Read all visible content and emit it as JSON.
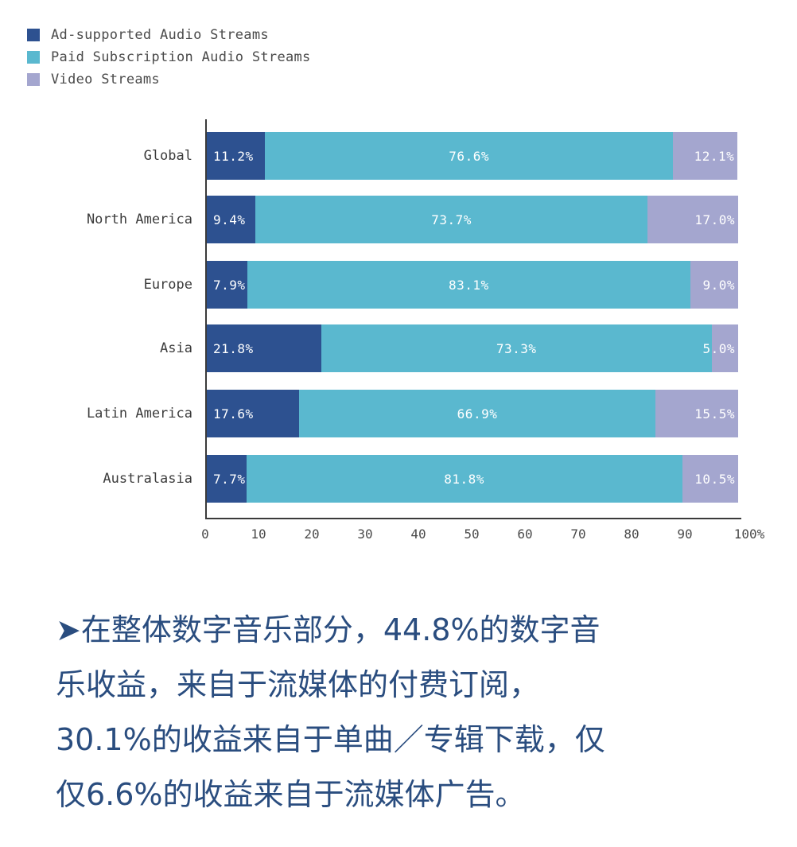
{
  "legend": [
    {
      "label": "Ad-supported Audio Streams",
      "color": "#2d5190"
    },
    {
      "label": "Paid Subscription Audio Streams",
      "color": "#5ab8cf"
    },
    {
      "label": "Video Streams",
      "color": "#a4a6cf"
    }
  ],
  "chart_data": {
    "type": "bar",
    "orientation": "horizontal",
    "stacked": true,
    "title": "",
    "xlabel": "",
    "ylabel": "",
    "xlim": [
      0,
      100
    ],
    "x_ticks": [
      "0",
      "10",
      "20",
      "30",
      "40",
      "50",
      "60",
      "70",
      "80",
      "90",
      "100%"
    ],
    "grid": false,
    "legend_position": "top-left",
    "categories": [
      "Global",
      "North America",
      "Europe",
      "Asia",
      "Latin America",
      "Australasia"
    ],
    "series": [
      {
        "name": "Ad-supported Audio Streams",
        "color": "#2d5190",
        "values": [
          11.2,
          9.4,
          7.9,
          21.8,
          17.6,
          7.7
        ],
        "labels": [
          "11.2%",
          "9.4%",
          "7.9%",
          "21.8%",
          "17.6%",
          "7.7%"
        ]
      },
      {
        "name": "Paid Subscription Audio Streams",
        "color": "#5ab8cf",
        "values": [
          76.6,
          73.7,
          83.1,
          73.3,
          66.9,
          81.8
        ],
        "labels": [
          "76.6%",
          "73.7%",
          "83.1%",
          "73.3%",
          "66.9%",
          "81.8%"
        ]
      },
      {
        "name": "Video Streams",
        "color": "#a4a6cf",
        "values": [
          12.1,
          17.0,
          9.0,
          5.0,
          15.5,
          10.5
        ],
        "labels": [
          "12.1%",
          "17.0%",
          "9.0%",
          "5.0%",
          "15.5%",
          "10.5%"
        ]
      }
    ]
  },
  "note": {
    "bullet": "➤",
    "lines": [
      "在整体数字音乐部分，44.8%的数字音",
      "乐收益，来自于流媒体的付费订阅，",
      "30.1%的收益来自于单曲／专辑下载，仅",
      "仅6.6%的收益来自于流媒体广告。"
    ]
  }
}
